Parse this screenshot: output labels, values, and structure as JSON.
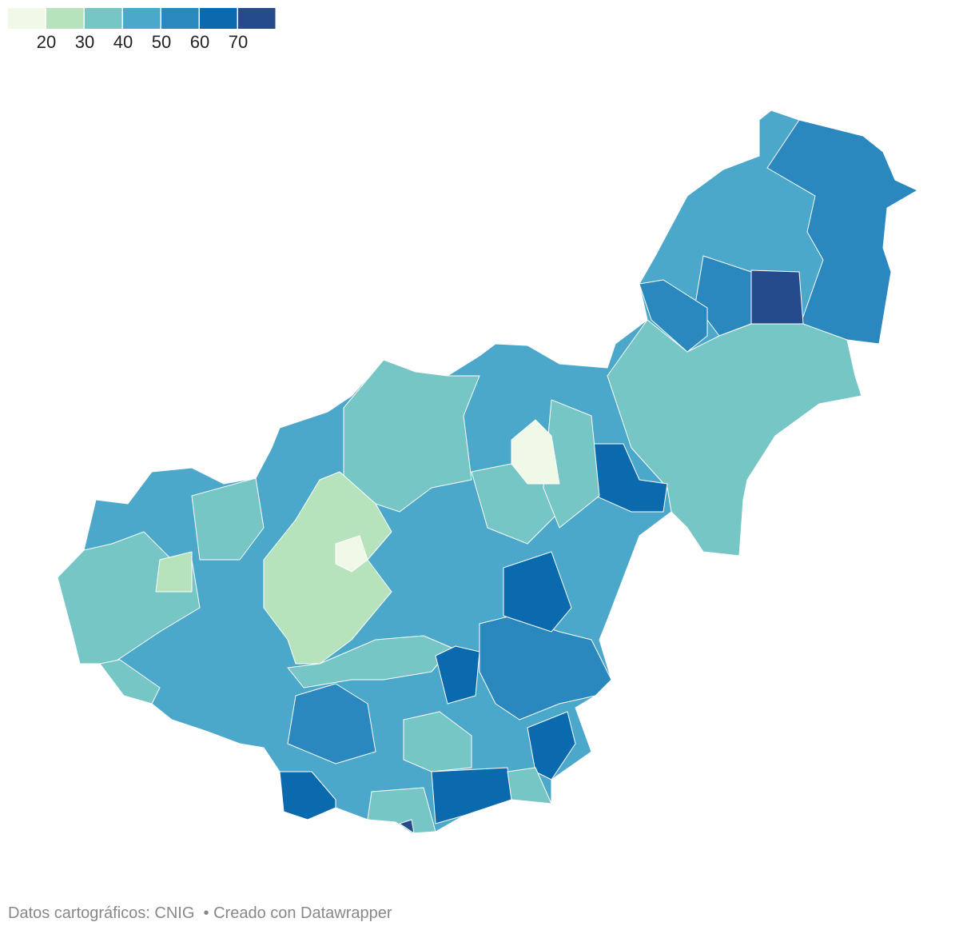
{
  "legend": {
    "colors": [
      "#f0f9e8",
      "#b6e3bb",
      "#75c6c5",
      "#4ba8cb",
      "#2a88be",
      "#0b69ae",
      "#264b8c"
    ],
    "ticks": [
      20,
      30,
      40,
      50,
      60,
      70
    ]
  },
  "footer": {
    "source": "Datos cartográficos: CNIG",
    "credit": "• Creado con Datawrapper"
  }
}
